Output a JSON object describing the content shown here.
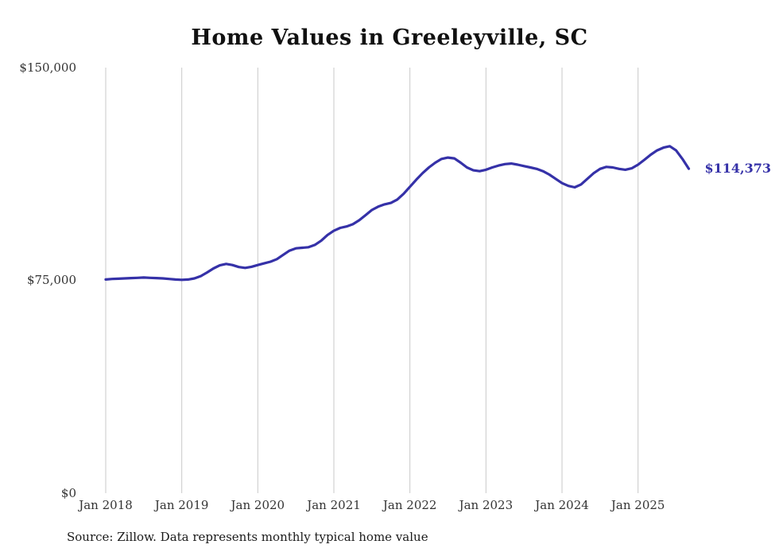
{
  "page": {
    "title": "Home Values in Greeleyville, SC",
    "source_note": "Source: Zillow. Data represents monthly typical home value"
  },
  "chart_data": {
    "type": "line",
    "title": "Home Values in Greeleyville, SC",
    "series_name": "Typical home value",
    "x_start": "Jan 2018",
    "x_end": "Sep 2025",
    "x_frequency": "monthly",
    "values": [
      75300,
      75500,
      75600,
      75700,
      75800,
      75900,
      76000,
      75900,
      75800,
      75700,
      75500,
      75300,
      75200,
      75300,
      75700,
      76500,
      77800,
      79200,
      80300,
      80800,
      80400,
      79700,
      79400,
      79800,
      80400,
      81000,
      81600,
      82500,
      84000,
      85500,
      86300,
      86500,
      86700,
      87500,
      89000,
      91000,
      92500,
      93500,
      94000,
      94800,
      96200,
      98000,
      99800,
      101000,
      101800,
      102300,
      103500,
      105500,
      108000,
      110500,
      112800,
      114800,
      116500,
      117800,
      118300,
      118000,
      116500,
      114800,
      113800,
      113500,
      114000,
      114800,
      115500,
      116000,
      116200,
      115800,
      115300,
      114800,
      114300,
      113500,
      112300,
      110800,
      109300,
      108300,
      107800,
      108800,
      110800,
      112800,
      114300,
      115000,
      114800,
      114300,
      114000,
      114500,
      115800,
      117500,
      119300,
      120800,
      121800,
      122300,
      120800,
      117800,
      114373
    ],
    "ylim": [
      0,
      150000
    ],
    "yticks": [
      150000,
      75000,
      0
    ],
    "ytick_labels": [
      "$150,000",
      "$75,000",
      "$0"
    ],
    "xtick_labels": [
      "Jan 2018",
      "Jan 2019",
      "Jan 2020",
      "Jan 2021",
      "Jan 2022",
      "Jan 2023",
      "Jan 2024",
      "Jan 2025"
    ],
    "grid": "vertical-yearly",
    "grid_color": "#c9c9c9",
    "line_color": "#3531a8",
    "end_label": "$114,373",
    "end_value": 114373
  }
}
